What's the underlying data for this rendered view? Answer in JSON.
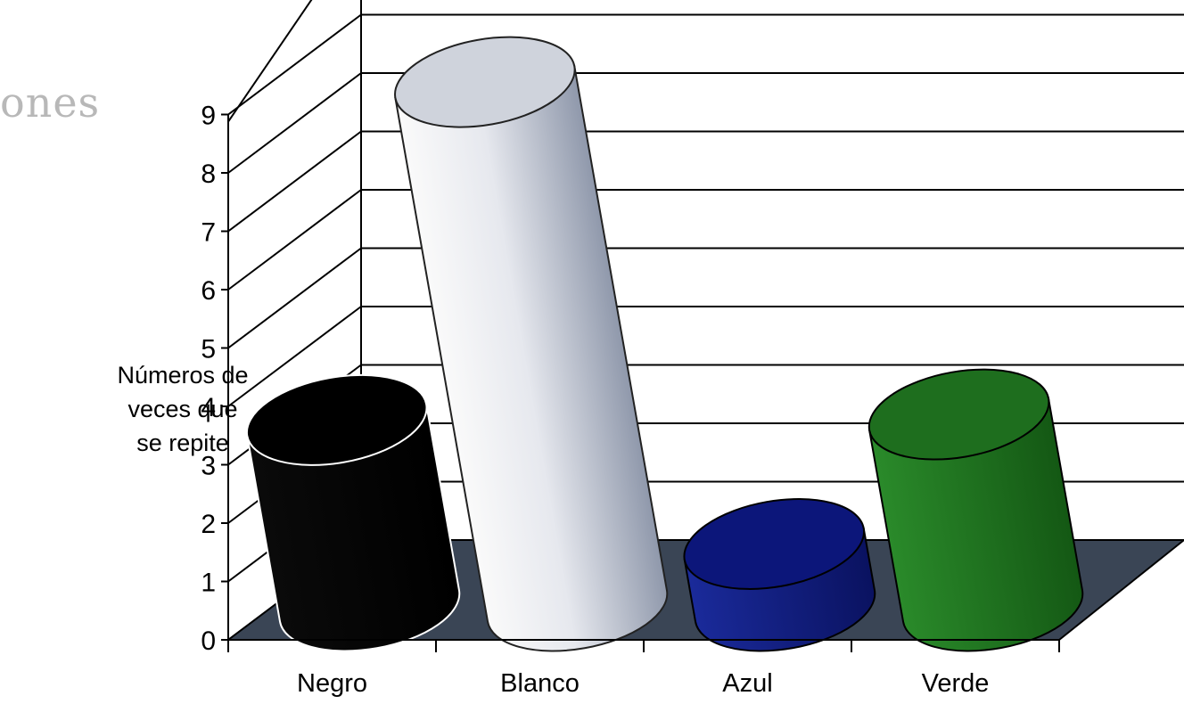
{
  "page": {
    "fragment_text": "ones"
  },
  "chart_data": {
    "type": "bar",
    "style": "3d-cylinder",
    "title": "",
    "xlabel": "",
    "ylabel": "Números de veces que se repite",
    "ylabel_lines": [
      "Números de",
      "veces que",
      "se repite"
    ],
    "categories": [
      "Negro",
      "Blanco",
      "Azul",
      "Verde"
    ],
    "values": [
      3.3,
      9.3,
      1.1,
      3.4
    ],
    "colors": [
      "#000000",
      "#e8eaf2",
      "#0e1a7a",
      "#1f7a1f"
    ],
    "ylim": [
      0,
      9
    ],
    "yticks": [
      0,
      1,
      2,
      3,
      4,
      5,
      6,
      7,
      8,
      9
    ],
    "grid": true,
    "floor_color": "#3a4555"
  }
}
